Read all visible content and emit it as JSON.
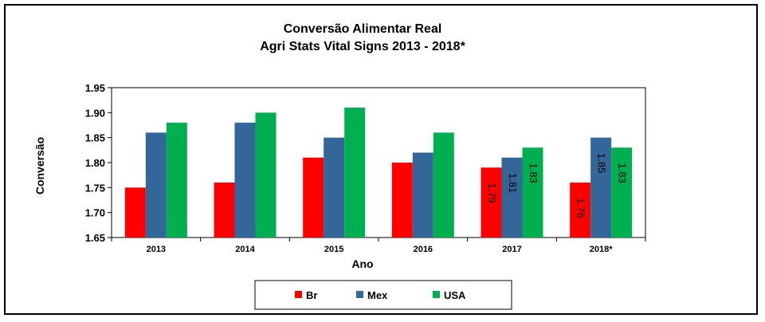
{
  "chart_data": {
    "type": "bar",
    "title": "Conversão Alimentar   Real",
    "subtitle": "Agri Stats Vital Signs 2013 - 2018*",
    "xlabel": "Ano",
    "ylabel": "Conversão",
    "ylim": [
      1.65,
      1.95
    ],
    "yticks": [
      "1.65",
      "1.70",
      "1.75",
      "1.80",
      "1.85",
      "1.90",
      "1.95"
    ],
    "grid": false,
    "legend_position": "bottom",
    "categories": [
      "2013",
      "2014",
      "2015",
      "2016",
      "2017",
      "2018*"
    ],
    "series": [
      {
        "name": "Br",
        "color": "#ff0000",
        "values": [
          1.75,
          1.76,
          1.81,
          1.8,
          1.79,
          1.76
        ],
        "labels": [
          "",
          "",
          "",
          "",
          "1.79",
          "1.76"
        ]
      },
      {
        "name": "Mex",
        "color": "#336699",
        "values": [
          1.86,
          1.88,
          1.85,
          1.82,
          1.81,
          1.85
        ],
        "labels": [
          "",
          "",
          "",
          "",
          "1.81",
          "1.85"
        ]
      },
      {
        "name": "USA",
        "color": "#00b050",
        "values": [
          1.88,
          1.9,
          1.91,
          1.86,
          1.83,
          1.83
        ],
        "labels": [
          "",
          "",
          "",
          "",
          "1.83",
          "1.83"
        ]
      }
    ]
  }
}
